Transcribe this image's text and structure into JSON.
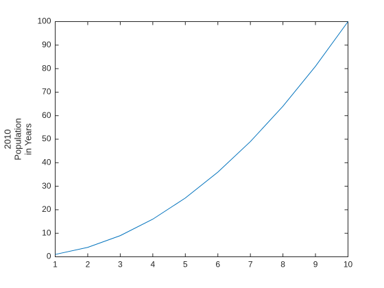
{
  "chart_data": {
    "type": "line",
    "ylabel": [
      "2010",
      "Population",
      "in Years"
    ],
    "x": [
      1,
      2,
      3,
      4,
      5,
      6,
      7,
      8,
      9,
      10
    ],
    "series": [
      {
        "color": "#0072bd",
        "values": [
          1,
          4,
          9,
          16,
          25,
          36,
          49,
          64,
          81,
          100
        ]
      }
    ],
    "xlim": [
      1,
      10
    ],
    "xticks": [
      1,
      2,
      3,
      4,
      5,
      6,
      7,
      8,
      9,
      10
    ],
    "ylim": [
      0,
      100
    ],
    "yticks": [
      0,
      10,
      20,
      30,
      40,
      50,
      60,
      70,
      80,
      90,
      100
    ],
    "grid": false
  }
}
